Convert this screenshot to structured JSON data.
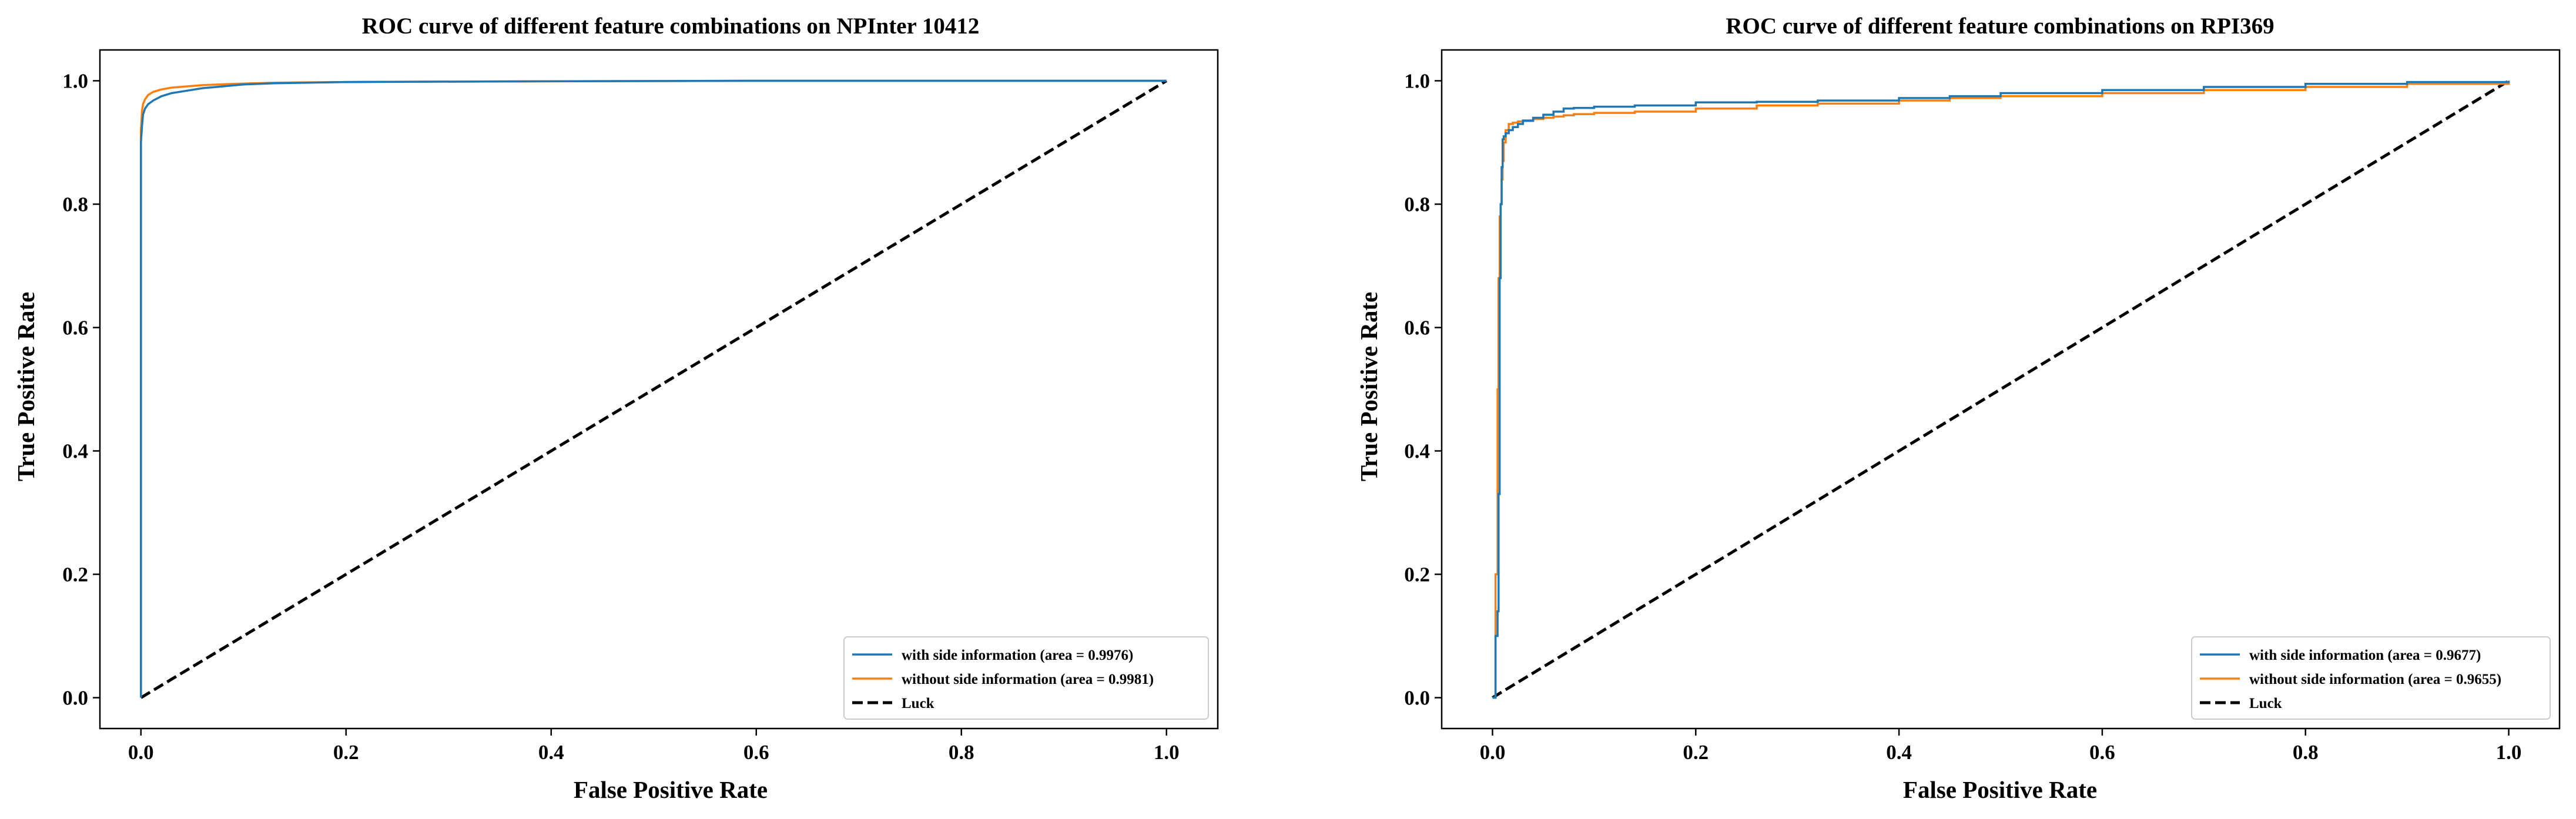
{
  "chart_data": [
    {
      "type": "line",
      "title": "ROC curve of different feature combinations on NPInter 10412",
      "xlabel": "False Positive Rate",
      "ylabel": "True Positive Rate",
      "xlim": [
        -0.04,
        1.05
      ],
      "ylim": [
        -0.05,
        1.05
      ],
      "xticks": [
        0.0,
        0.2,
        0.4,
        0.6,
        0.8,
        1.0
      ],
      "yticks": [
        0.0,
        0.2,
        0.4,
        0.6,
        0.8,
        1.0
      ],
      "xtick_labels": [
        "0.0",
        "0.2",
        "0.4",
        "0.6",
        "0.8",
        "1.0"
      ],
      "ytick_labels": [
        "0.0",
        "0.2",
        "0.4",
        "0.6",
        "0.8",
        "1.0"
      ],
      "grid": false,
      "legend_position": "bottom-right",
      "series": [
        {
          "name": "with side information (area = 0.9976)",
          "color": "#1f77b4",
          "style": "solid",
          "x": [
            0.0,
            0.0,
            0.001,
            0.002,
            0.004,
            0.007,
            0.012,
            0.02,
            0.03,
            0.045,
            0.06,
            0.08,
            0.1,
            0.13,
            0.2,
            0.35,
            0.6,
            1.0
          ],
          "y": [
            0.0,
            0.9,
            0.925,
            0.945,
            0.955,
            0.962,
            0.968,
            0.975,
            0.98,
            0.984,
            0.988,
            0.991,
            0.994,
            0.996,
            0.998,
            0.999,
            1.0,
            1.0
          ]
        },
        {
          "name": "without side information (area = 0.9981)",
          "color": "#ff7f0e",
          "style": "solid",
          "x": [
            0.0,
            0.0,
            0.001,
            0.002,
            0.004,
            0.007,
            0.012,
            0.02,
            0.03,
            0.045,
            0.06,
            0.09,
            0.13,
            0.2,
            0.35,
            0.6,
            1.0
          ],
          "y": [
            0.0,
            0.92,
            0.95,
            0.962,
            0.97,
            0.977,
            0.982,
            0.986,
            0.989,
            0.991,
            0.993,
            0.995,
            0.997,
            0.998,
            0.999,
            1.0,
            1.0
          ]
        },
        {
          "name": "Luck",
          "color": "#000000",
          "style": "dashed",
          "x": [
            0.0,
            1.0
          ],
          "y": [
            0.0,
            1.0
          ]
        }
      ]
    },
    {
      "type": "line",
      "title": "ROC curve of different feature combinations on RPI369",
      "xlabel": "False Positive Rate",
      "ylabel": "True Positive Rate",
      "xlim": [
        -0.05,
        1.05
      ],
      "ylim": [
        -0.05,
        1.05
      ],
      "xticks": [
        0.0,
        0.2,
        0.4,
        0.6,
        0.8,
        1.0
      ],
      "yticks": [
        0.0,
        0.2,
        0.4,
        0.6,
        0.8,
        1.0
      ],
      "xtick_labels": [
        "0.0",
        "0.2",
        "0.4",
        "0.6",
        "0.8",
        "1.0"
      ],
      "ytick_labels": [
        "0.0",
        "0.2",
        "0.4",
        "0.6",
        "0.8",
        "1.0"
      ],
      "grid": false,
      "legend_position": "bottom-right",
      "series": [
        {
          "name": "with side information (area = 0.9677)",
          "color": "#1f77b4",
          "style": "step",
          "x": [
            0.0,
            0.003,
            0.005,
            0.006,
            0.007,
            0.008,
            0.009,
            0.01,
            0.011,
            0.013,
            0.016,
            0.02,
            0.025,
            0.03,
            0.04,
            0.05,
            0.06,
            0.07,
            0.08,
            0.1,
            0.14,
            0.2,
            0.26,
            0.32,
            0.4,
            0.45,
            0.5,
            0.6,
            0.7,
            0.8,
            0.9,
            1.0
          ],
          "y": [
            0.0,
            0.1,
            0.14,
            0.33,
            0.68,
            0.8,
            0.86,
            0.905,
            0.91,
            0.915,
            0.92,
            0.925,
            0.93,
            0.935,
            0.94,
            0.945,
            0.95,
            0.955,
            0.956,
            0.958,
            0.96,
            0.965,
            0.966,
            0.968,
            0.972,
            0.975,
            0.98,
            0.985,
            0.99,
            0.995,
            0.998,
            1.0
          ]
        },
        {
          "name": "without side information (area = 0.9655)",
          "color": "#ff7f0e",
          "style": "step",
          "x": [
            0.0,
            0.003,
            0.005,
            0.006,
            0.007,
            0.008,
            0.009,
            0.01,
            0.011,
            0.013,
            0.016,
            0.02,
            0.025,
            0.03,
            0.04,
            0.05,
            0.06,
            0.07,
            0.08,
            0.1,
            0.14,
            0.2,
            0.26,
            0.32,
            0.4,
            0.45,
            0.5,
            0.6,
            0.7,
            0.8,
            0.9,
            1.0
          ],
          "y": [
            0.0,
            0.2,
            0.5,
            0.68,
            0.78,
            0.8,
            0.84,
            0.87,
            0.9,
            0.92,
            0.93,
            0.932,
            0.934,
            0.936,
            0.938,
            0.94,
            0.942,
            0.944,
            0.946,
            0.948,
            0.95,
            0.955,
            0.96,
            0.963,
            0.968,
            0.972,
            0.975,
            0.98,
            0.985,
            0.99,
            0.995,
            1.0
          ]
        },
        {
          "name": "Luck",
          "color": "#000000",
          "style": "dashed",
          "x": [
            0.0,
            1.0
          ],
          "y": [
            0.0,
            1.0
          ]
        }
      ]
    }
  ]
}
